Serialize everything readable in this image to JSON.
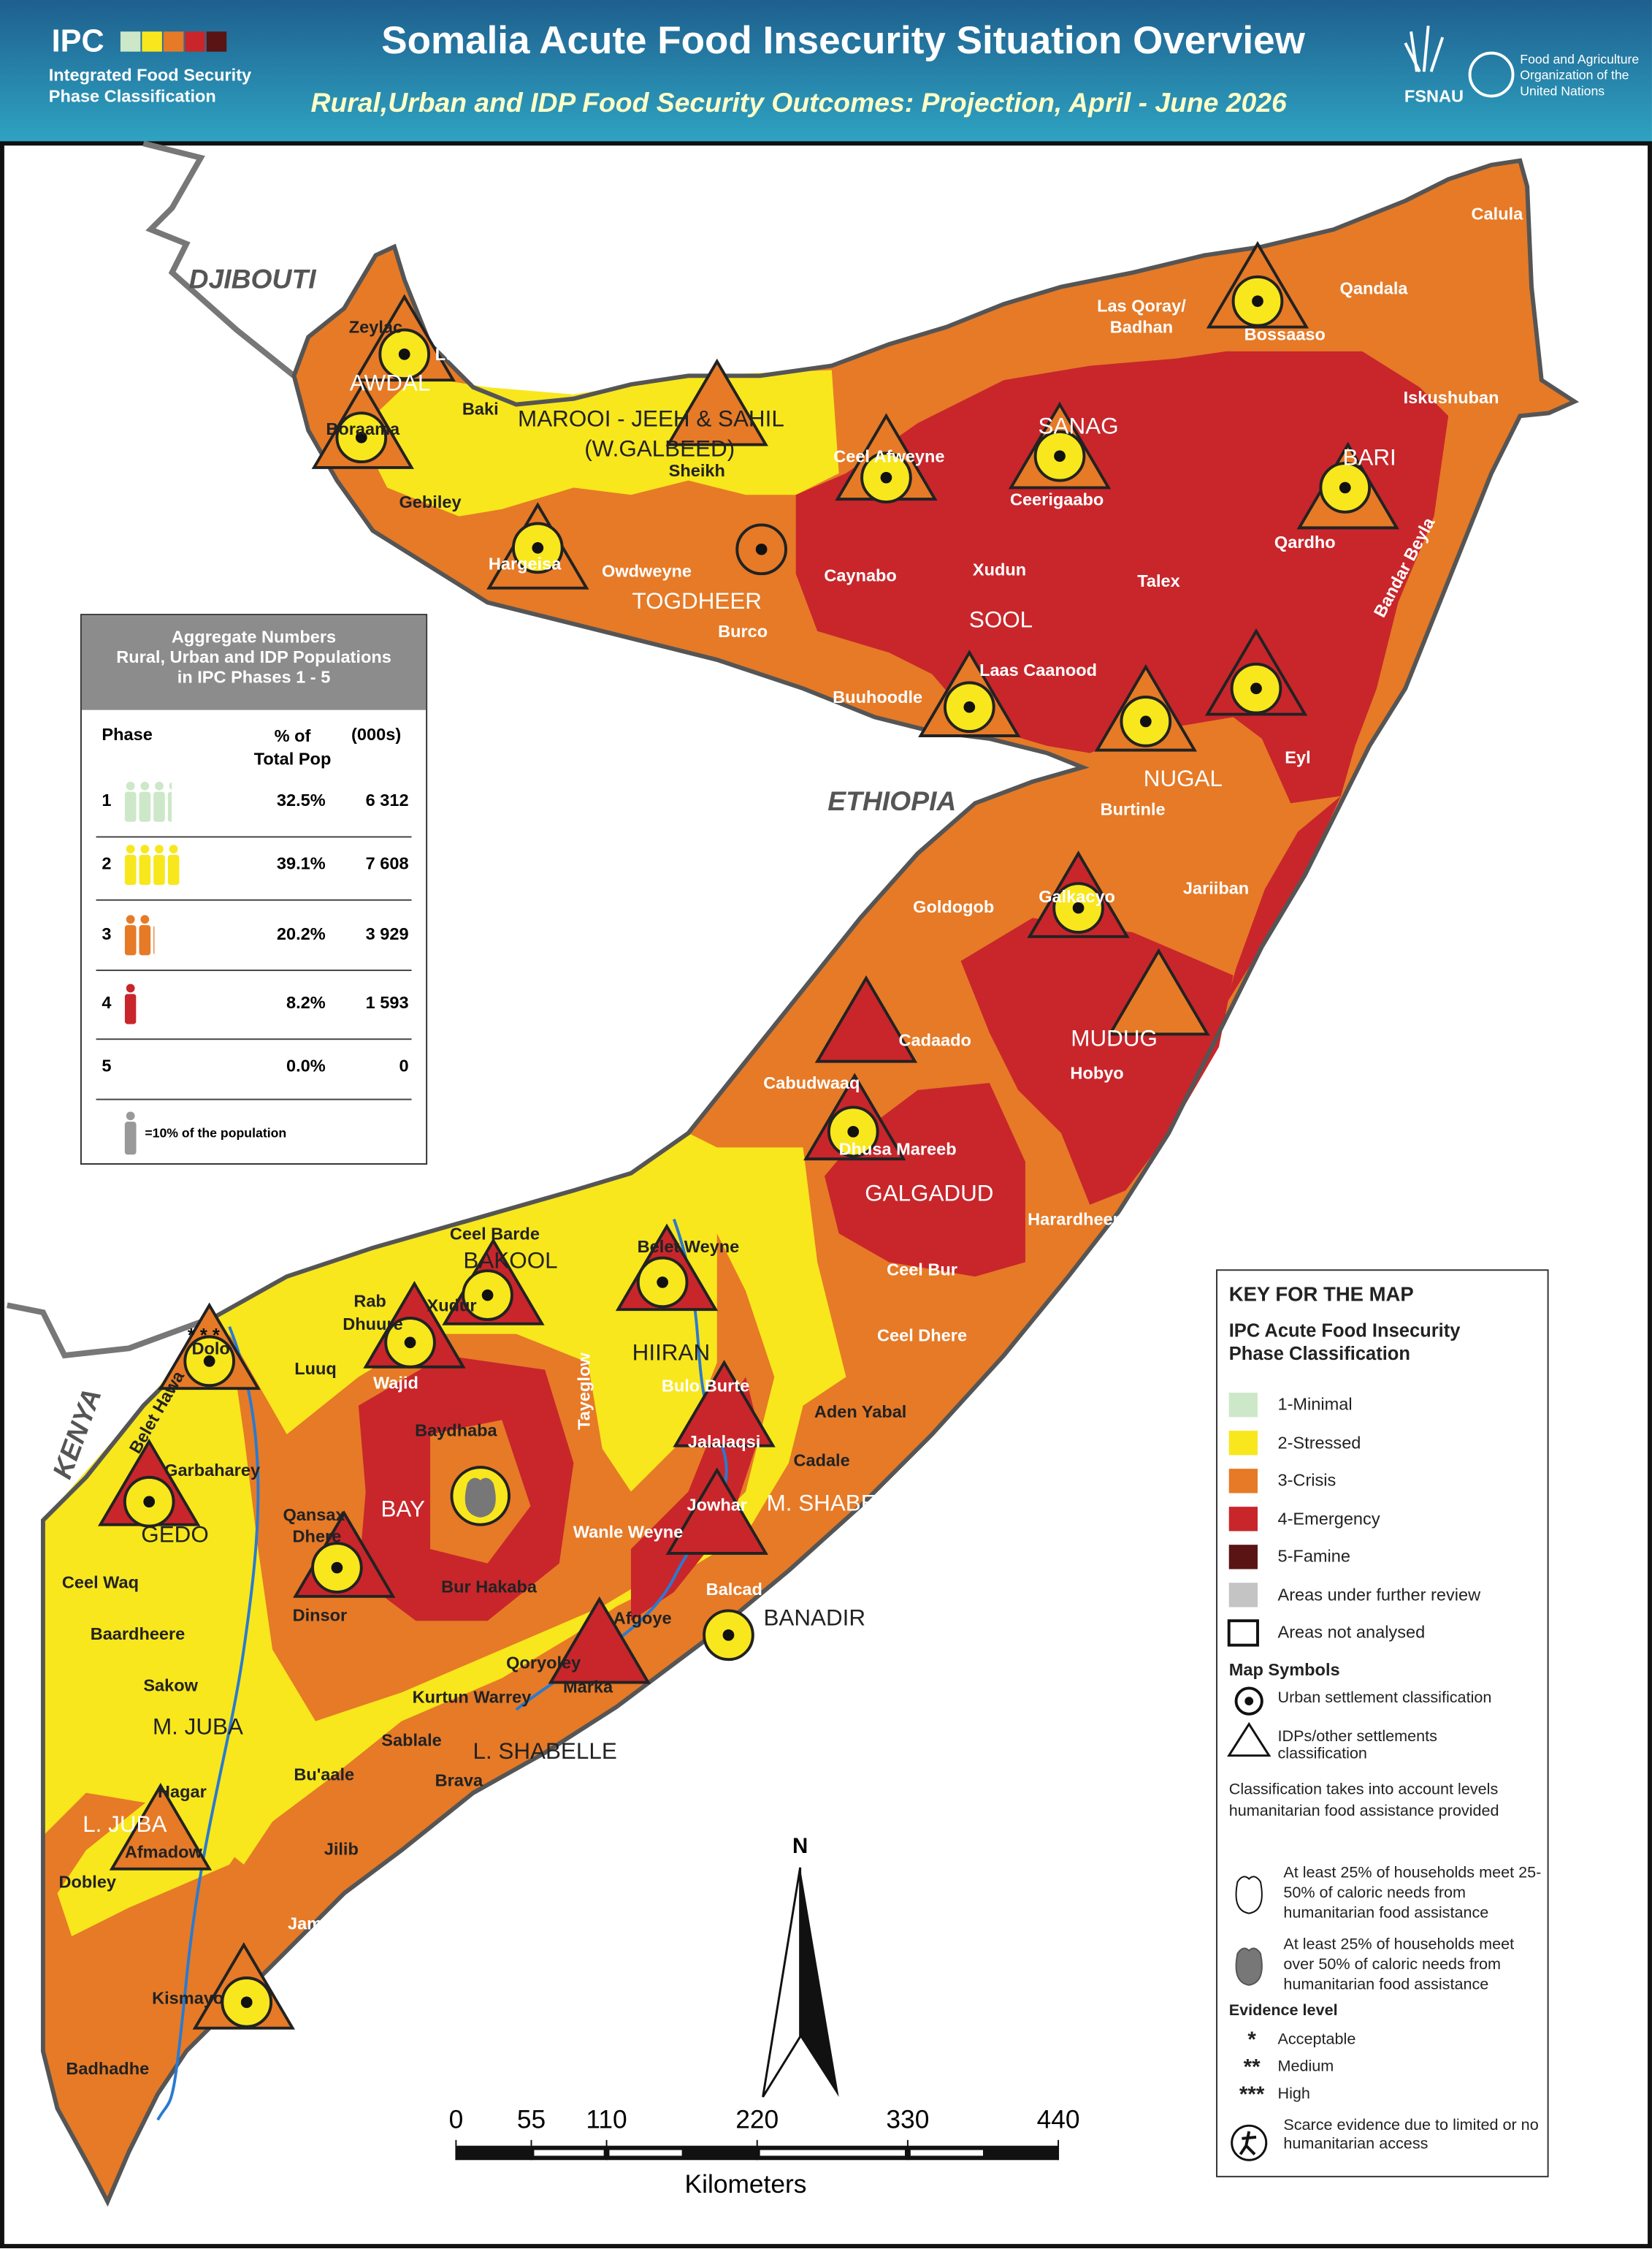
{
  "header": {
    "logo": "IPC",
    "logo_lines": [
      "Integrated Food Security",
      "Phase Classification"
    ],
    "title": "Somalia Acute Food Insecurity Situation Overview",
    "subtitle": "Rural,Urban and IDP Food Security Outcomes: Projection, April - June 2026",
    "fsnau": "FSNAU",
    "fao_lines": [
      "Food and Agriculture",
      "Organization of the",
      "United Nations"
    ]
  },
  "map": {
    "countries": [
      "DJIBOUTI",
      "ETHIOPIA",
      "KENYA"
    ],
    "regions": [
      "AWDAL",
      "MAROOI - JEEH & SAHIL",
      "(W.GALBEED)",
      "SANAG",
      "BARI",
      "TOGDHEER",
      "SOOL",
      "NUGAL",
      "MUDUG",
      "GALGADUD",
      "BAKOOL",
      "HIIRAN",
      "M. SHABELLE",
      "BANADIR",
      "BAY",
      "GEDO",
      "M. JUBA",
      "L. JUBA",
      "L. SHABELLE"
    ],
    "districts": [
      "Calula",
      "Qandala",
      "Las Qoray/",
      "Badhan",
      "Bossaaso",
      "Iskushuban",
      "Qardho",
      "Bandar Beyla",
      "Ceerigaabo",
      "Ceel Afweyne",
      "Zeylac",
      "Lughaye",
      "Baki",
      "Boraama",
      "Sheikh",
      "Gebiley",
      "Hargeisa",
      "Owdweyne",
      "Burco",
      "Caynabo",
      "Xudun",
      "Talex",
      "Laas Caanood",
      "Buuhoodle",
      "Burtinle",
      "Eyl",
      "Goldogob",
      "Galkacyo",
      "Jariiban",
      "Hobyo",
      "Cadaado",
      "Cabudwaaq",
      "Dhusa Mareeb",
      "Harardheere",
      "Ceel Bur",
      "Ceel Dhere",
      "Ceel Barde",
      "Rab",
      "Dhuure",
      "Xudur",
      "Wajid",
      "Belet Weyne",
      "Tayeglow",
      "Bulo Burte",
      "Jalalaqsi",
      "Aden Yabal",
      "Cadale",
      "Jowhar",
      "Wanle Weyne",
      "Balcad",
      "Afgoye",
      "Baydhaba",
      "Qansax",
      "Dhere",
      "Bur Hakaba",
      "Dinsor",
      "Qoryoley",
      "Marka",
      "Kurtun Warrey",
      "Sablale",
      "Brava",
      "Dolo",
      "Luuq",
      "Belet Hawa",
      "Garbaharey",
      "Ceel Waq",
      "Baardheere",
      "Sakow",
      "Bu'aale",
      "Hagar",
      "Afmadow",
      "Dobley",
      "Jilib",
      "Jamaame",
      "Kismayo",
      "Badhadhe"
    ],
    "dolo_evidence": "* * *"
  },
  "aggregate": {
    "title_lines": [
      "Aggregate Numbers",
      "Rural, Urban and IDP Populations",
      "in IPC Phases 1 - 5"
    ],
    "col_phase": "Phase",
    "col_percent": [
      "% of",
      "Total Pop"
    ],
    "col_population": "(000s)",
    "rows": [
      {
        "phase": 1,
        "percent": {
          "value": 32.5,
          "label": "32.5%"
        },
        "population": {
          "value": 6312,
          "label": "6 312"
        }
      },
      {
        "phase": 2,
        "percent": {
          "value": 39.1,
          "label": "39.1%"
        },
        "population": {
          "value": 7608,
          "label": "7 608"
        }
      },
      {
        "phase": 3,
        "percent": {
          "value": 20.2,
          "label": "20.2%"
        },
        "population": {
          "value": 3929,
          "label": "3 929"
        }
      },
      {
        "phase": 4,
        "percent": {
          "value": 8.2,
          "label": "8.2%"
        },
        "population": {
          "value": 1593,
          "label": "1 593"
        }
      },
      {
        "phase": 5,
        "percent": {
          "value": 0.0,
          "label": "0.0%"
        },
        "population": {
          "value": 0,
          "label": "0"
        }
      }
    ],
    "icon_note": "=10% of the population"
  },
  "key": {
    "title": "KEY FOR THE MAP",
    "subtitle_lines": [
      "IPC Acute Food Insecurity",
      "Phase Classification"
    ],
    "phases": [
      {
        "label": "1-Minimal",
        "color": "#cde8c8"
      },
      {
        "label": "2-Stressed",
        "color": "#f8e71c"
      },
      {
        "label": "3-Crisis",
        "color": "#e67a27"
      },
      {
        "label": "4-Emergency",
        "color": "#c8262b"
      },
      {
        "label": "5-Famine",
        "color": "#5a1414"
      },
      {
        "label": "Areas under further review",
        "color": "#c4c4c4"
      },
      {
        "label": "Areas not analysed",
        "color": "#ffffff"
      }
    ],
    "symbols_title": "Map Symbols",
    "symbols": [
      "Urban settlement classification",
      "IDPs/other settlements classification"
    ],
    "note": "Classification takes into account levels humanitarian food assistance provided",
    "assistance": [
      "At least 25% of households meet 25-50% of caloric needs from humanitarian food assistance",
      "At least 25% of households meet over 50% of caloric needs from humanitarian food assistance"
    ],
    "evidence_title": "Evidence level",
    "evidence": [
      {
        "mark": "*",
        "label": "Acceptable"
      },
      {
        "mark": "**",
        "label": "Medium"
      },
      {
        "mark": "***",
        "label": "High"
      }
    ],
    "scarce": "Scarce evidence due to limited or no humanitarian access"
  },
  "scale": {
    "ticks": [
      0,
      55,
      110,
      220,
      330,
      440
    ],
    "unit": "Kilometers",
    "north": "N"
  }
}
